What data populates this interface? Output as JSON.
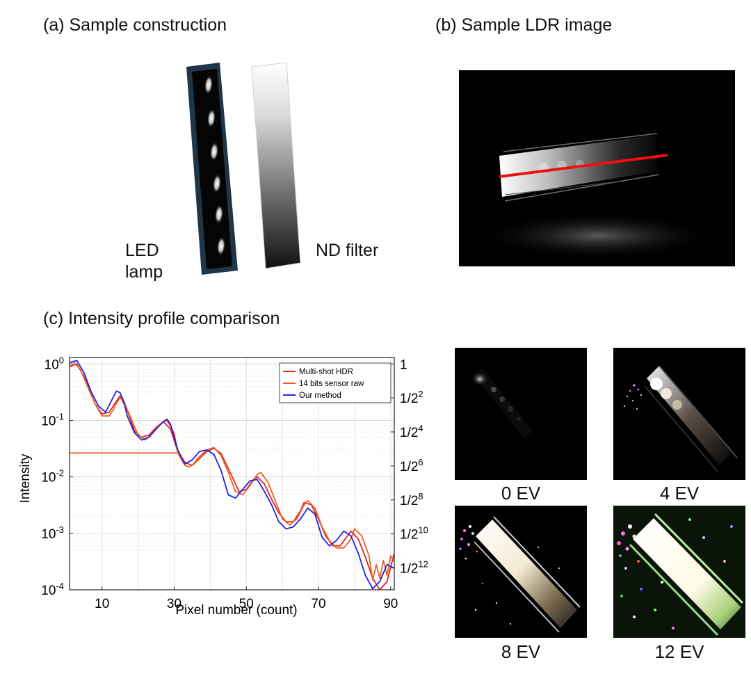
{
  "panels": {
    "a": {
      "caption": "(a) Sample construction",
      "led_label_line1": "LED",
      "led_label_line2": "lamp",
      "nd_label": "ND filter"
    },
    "b": {
      "caption": "(b) Sample LDR image"
    },
    "c": {
      "caption": "(c) Intensity profile comparison"
    }
  },
  "exposures": [
    {
      "label": "0 EV",
      "ev": 0
    },
    {
      "label": "4 EV",
      "ev": 4
    },
    {
      "label": "8 EV",
      "ev": 8
    },
    {
      "label": "12 EV",
      "ev": 12
    }
  ],
  "colors": {
    "multi_shot": "#e3231c",
    "sensor_raw": "#e8602a",
    "ours": "#1f22e0",
    "scan_line": "#ee1010"
  },
  "chart_data": {
    "type": "line",
    "title": "(c) Intensity profile comparison",
    "xlabel": "Pixel number (count)",
    "ylabel": "Intensity",
    "yscale": "log",
    "xlim": [
      1,
      91
    ],
    "ylim": [
      0.0001,
      1.3
    ],
    "grid": true,
    "legend_position": "top-right",
    "x_ticks": [
      10,
      30,
      50,
      70,
      90
    ],
    "y_ticks": [
      {
        "value": 1,
        "base": "10",
        "exp": "0"
      },
      {
        "value": 0.1,
        "base": "10",
        "exp": "-1"
      },
      {
        "value": 0.01,
        "base": "10",
        "exp": "-2"
      },
      {
        "value": 0.001,
        "base": "10",
        "exp": "-3"
      },
      {
        "value": 0.0001,
        "base": "10",
        "exp": "-4"
      }
    ],
    "right_axis_ticks": [
      {
        "value": 1,
        "base": "1",
        "exp": ""
      },
      {
        "value": 0.25,
        "base": "1/2",
        "exp": "2"
      },
      {
        "value": 0.0625,
        "base": "1/2",
        "exp": "4"
      },
      {
        "value": 0.015625,
        "base": "1/2",
        "exp": "6"
      },
      {
        "value": 0.00390625,
        "base": "1/2",
        "exp": "8"
      },
      {
        "value": 0.0009765625,
        "base": "1/2",
        "exp": "10"
      },
      {
        "value": 0.000244140625,
        "base": "1/2",
        "exp": "12"
      }
    ],
    "series": [
      {
        "name": "Multi-shot HDR",
        "color": "#e3231c",
        "x": [
          1,
          3,
          5,
          8,
          10,
          12,
          14,
          15,
          17,
          19,
          21,
          23,
          25,
          27,
          29,
          31,
          33,
          35,
          37,
          39,
          41,
          43,
          45,
          48,
          50,
          52,
          53,
          55,
          57,
          59,
          61,
          63,
          65,
          66,
          68,
          70,
          72,
          74,
          76,
          78,
          79,
          81,
          83,
          85,
          87,
          89,
          91
        ],
        "y": [
          0.9,
          1.0,
          0.6,
          0.2,
          0.13,
          0.14,
          0.22,
          0.27,
          0.15,
          0.065,
          0.05,
          0.055,
          0.075,
          0.095,
          0.07,
          0.028,
          0.018,
          0.016,
          0.021,
          0.028,
          0.032,
          0.026,
          0.014,
          0.0055,
          0.006,
          0.009,
          0.01,
          0.0075,
          0.004,
          0.0023,
          0.0016,
          0.0016,
          0.0025,
          0.0035,
          0.0032,
          0.0018,
          0.0009,
          0.0006,
          0.0006,
          0.0009,
          0.0011,
          0.0008,
          0.00038,
          0.00016,
          0.0001,
          0.00014,
          0.00045
        ]
      },
      {
        "name": "14 bits sensor raw",
        "color": "#e8602a",
        "x": [
          1,
          2,
          4,
          6,
          8,
          10,
          12,
          13,
          14,
          15,
          16,
          18,
          20,
          22,
          24,
          26,
          28,
          30,
          31,
          32,
          33,
          34,
          35,
          37,
          39,
          41,
          43,
          45,
          47,
          49,
          51,
          53,
          54,
          56,
          58,
          60,
          62,
          64,
          66,
          67,
          69,
          71,
          73,
          75,
          77,
          79,
          80,
          82,
          84,
          85,
          86,
          87,
          88,
          89,
          90,
          91
        ],
        "y": [
          1.05,
          1.1,
          0.8,
          0.4,
          0.2,
          0.12,
          0.12,
          0.15,
          0.2,
          0.25,
          0.22,
          0.11,
          0.055,
          0.045,
          0.06,
          0.085,
          0.1,
          0.06,
          0.0265,
          0.02,
          0.016,
          0.015,
          0.016,
          0.023,
          0.03,
          0.033,
          0.024,
          0.012,
          0.0055,
          0.0048,
          0.007,
          0.011,
          0.012,
          0.008,
          0.0038,
          0.0018,
          0.0014,
          0.0018,
          0.0032,
          0.0038,
          0.0028,
          0.0013,
          0.00075,
          0.00055,
          0.00055,
          0.0008,
          0.0012,
          0.0009,
          0.0004,
          0.00015,
          0.00028,
          0.00016,
          0.00033,
          0.00018,
          0.0004,
          0.00032
        ],
        "clipped_level": 0.0265,
        "clipped_x_range": [
          1,
          31
        ]
      },
      {
        "name": "Our method",
        "color": "#1f22e0",
        "x": [
          1,
          3,
          5,
          7,
          9,
          11,
          13,
          14,
          15,
          16,
          17,
          19,
          21,
          23,
          25,
          27,
          28,
          29,
          31,
          33,
          35,
          37,
          39,
          41,
          43,
          45,
          47,
          49,
          51,
          53,
          55,
          57,
          59,
          61,
          63,
          65,
          67,
          69,
          71,
          73,
          75,
          77,
          79,
          81,
          83,
          85,
          87,
          89,
          91
        ],
        "y": [
          1.05,
          1.15,
          0.7,
          0.32,
          0.18,
          0.14,
          0.25,
          0.33,
          0.31,
          0.22,
          0.12,
          0.06,
          0.045,
          0.05,
          0.07,
          0.095,
          0.105,
          0.085,
          0.03,
          0.017,
          0.02,
          0.028,
          0.03,
          0.025,
          0.013,
          0.0048,
          0.0042,
          0.006,
          0.0085,
          0.009,
          0.0055,
          0.0032,
          0.0016,
          0.0012,
          0.0013,
          0.0018,
          0.0028,
          0.0022,
          0.00085,
          0.0006,
          0.00075,
          0.0011,
          0.0009,
          0.00045,
          0.00018,
          0.000105,
          0.00014,
          0.00028,
          0.00024
        ]
      }
    ]
  }
}
